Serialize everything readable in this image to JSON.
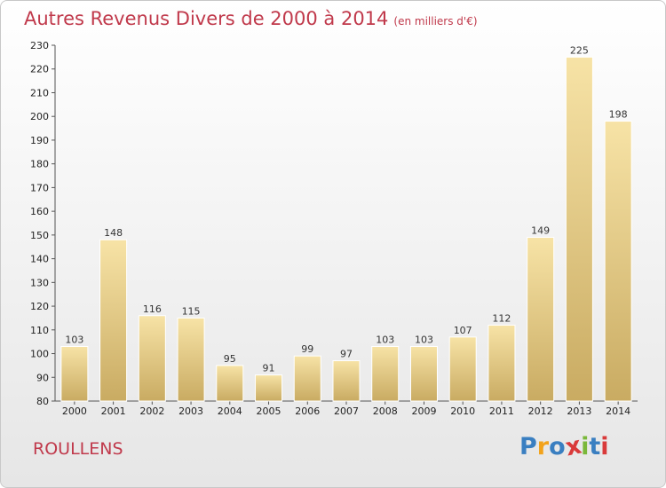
{
  "chart_data": {
    "type": "bar",
    "title": "Autres Revenus Divers de 2000 à 2014",
    "subtitle": "(en milliers d'€)",
    "categories": [
      "2000",
      "2001",
      "2002",
      "2003",
      "2004",
      "2005",
      "2006",
      "2007",
      "2008",
      "2009",
      "2010",
      "2011",
      "2012",
      "2013",
      "2014"
    ],
    "values": [
      103,
      148,
      116,
      115,
      95,
      91,
      99,
      97,
      103,
      103,
      107,
      112,
      149,
      225,
      198
    ],
    "ylim": [
      80,
      230
    ],
    "yticks": [
      80,
      90,
      100,
      110,
      120,
      130,
      140,
      150,
      160,
      170,
      180,
      190,
      200,
      210,
      220,
      230
    ],
    "grid": false,
    "bar_color": "#e8c97a"
  },
  "commune": "ROULLENS",
  "logo": {
    "letters": [
      "P",
      "r",
      "o",
      "x",
      "i",
      "t",
      "i"
    ],
    "colors": [
      "#3a7fc1",
      "#f2a31c",
      "#3a7fc1",
      "#d93a3a",
      "#7ab83a",
      "#3a7fc1",
      "#d93a3a"
    ]
  }
}
